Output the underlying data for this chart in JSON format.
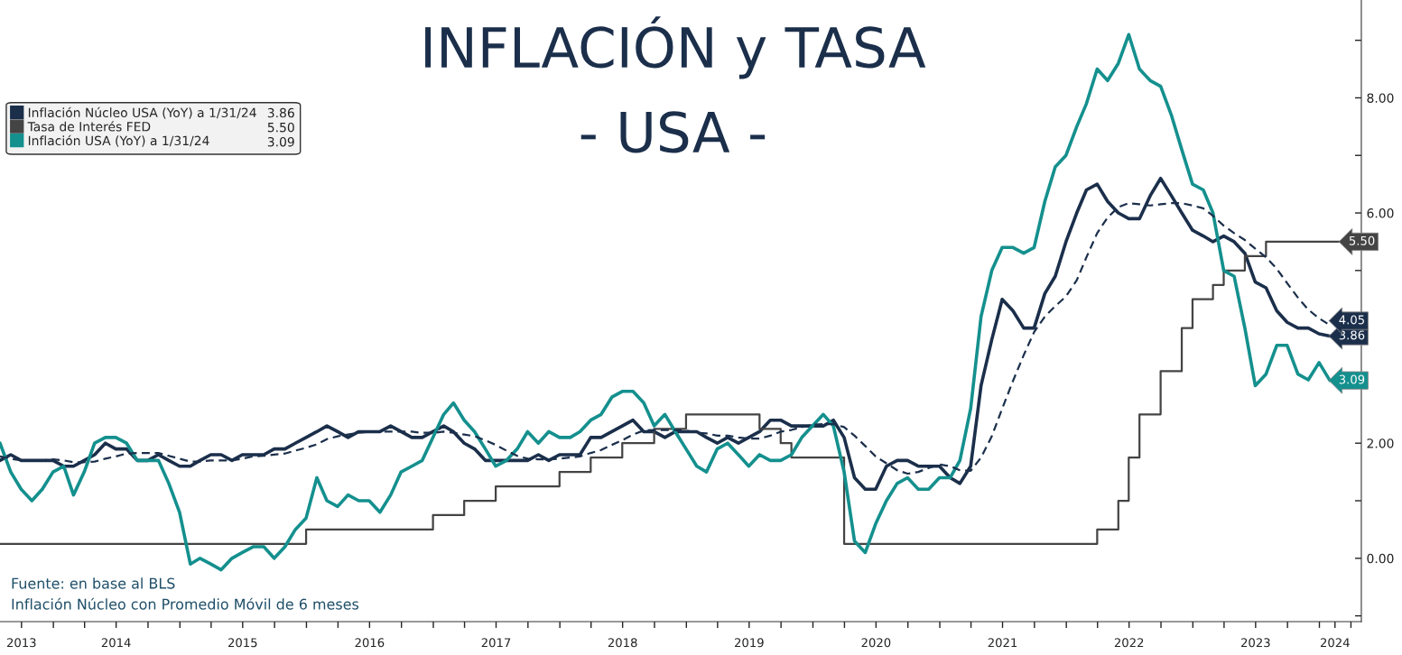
{
  "chart_data": {
    "type": "line",
    "title": "INFLACIÓN y TASA\n- USA -",
    "x": [
      "2013-07-31",
      "2013-08-31",
      "2013-09-30",
      "2013-10-31",
      "2013-11-30",
      "2013-12-31",
      "2014-01-31",
      "2014-02-28",
      "2014-03-31",
      "2014-04-30",
      "2014-05-31",
      "2014-06-30",
      "2014-07-31",
      "2014-08-31",
      "2014-09-30",
      "2014-10-31",
      "2014-11-30",
      "2014-12-31",
      "2015-01-31",
      "2015-02-28",
      "2015-03-31",
      "2015-04-30",
      "2015-05-31",
      "2015-06-30",
      "2015-07-31",
      "2015-08-31",
      "2015-09-30",
      "2015-10-31",
      "2015-11-30",
      "2015-12-31",
      "2016-01-31",
      "2016-02-29",
      "2016-03-31",
      "2016-04-30",
      "2016-05-31",
      "2016-06-30",
      "2016-07-31",
      "2016-08-31",
      "2016-09-30",
      "2016-10-31",
      "2016-11-30",
      "2016-12-31",
      "2017-01-31",
      "2017-02-28",
      "2017-03-31",
      "2017-04-30",
      "2017-05-31",
      "2017-06-30",
      "2017-07-31",
      "2017-08-31",
      "2017-09-30",
      "2017-10-31",
      "2017-11-30",
      "2017-12-31",
      "2018-01-31",
      "2018-02-28",
      "2018-03-31",
      "2018-04-30",
      "2018-05-31",
      "2018-06-30",
      "2018-07-31",
      "2018-08-31",
      "2018-09-30",
      "2018-10-31",
      "2018-11-30",
      "2018-12-31",
      "2019-01-31",
      "2019-02-28",
      "2019-03-31",
      "2019-04-30",
      "2019-05-31",
      "2019-06-30",
      "2019-07-31",
      "2019-08-31",
      "2019-09-30",
      "2019-10-31",
      "2019-11-30",
      "2019-12-31",
      "2020-01-31",
      "2020-02-29",
      "2020-03-31",
      "2020-04-30",
      "2020-05-31",
      "2020-06-30",
      "2020-07-31",
      "2020-08-31",
      "2020-09-30",
      "2020-10-31",
      "2020-11-30",
      "2020-12-31",
      "2021-01-31",
      "2021-02-28",
      "2021-03-31",
      "2021-04-30",
      "2021-05-31",
      "2021-06-30",
      "2021-07-31",
      "2021-08-31",
      "2021-09-30",
      "2021-10-31",
      "2021-11-30",
      "2021-12-31",
      "2022-01-31",
      "2022-02-28",
      "2022-03-31",
      "2022-04-30",
      "2022-05-31",
      "2022-06-30",
      "2022-07-31",
      "2022-08-31",
      "2022-09-30",
      "2022-10-31",
      "2022-11-30",
      "2022-12-31",
      "2023-01-31",
      "2023-02-28",
      "2023-03-31",
      "2023-04-30",
      "2023-05-31",
      "2023-06-30",
      "2023-07-31",
      "2023-08-31",
      "2023-09-30",
      "2023-10-31",
      "2023-11-30",
      "2023-12-31",
      "2024-01-31"
    ],
    "series": [
      {
        "name": "Inflación Núcleo USA (YoY) a 1/31/24",
        "type": "line",
        "color": "#1b2f4b",
        "line_style": "solid",
        "values": [
          1.7,
          1.8,
          1.7,
          1.7,
          1.7,
          1.7,
          1.6,
          1.6,
          1.7,
          1.8,
          2.0,
          1.9,
          1.9,
          1.7,
          1.7,
          1.8,
          1.7,
          1.6,
          1.6,
          1.7,
          1.8,
          1.8,
          1.7,
          1.8,
          1.8,
          1.8,
          1.9,
          1.9,
          2.0,
          2.1,
          2.2,
          2.3,
          2.2,
          2.1,
          2.2,
          2.2,
          2.2,
          2.3,
          2.2,
          2.1,
          2.1,
          2.2,
          2.3,
          2.2,
          2.0,
          1.9,
          1.7,
          1.7,
          1.7,
          1.7,
          1.7,
          1.8,
          1.7,
          1.8,
          1.8,
          1.8,
          2.1,
          2.1,
          2.2,
          2.3,
          2.4,
          2.2,
          2.2,
          2.1,
          2.2,
          2.2,
          2.2,
          2.1,
          2.0,
          2.1,
          2.0,
          2.1,
          2.2,
          2.4,
          2.4,
          2.3,
          2.3,
          2.3,
          2.3,
          2.4,
          2.1,
          1.4,
          1.2,
          1.2,
          1.6,
          1.7,
          1.7,
          1.6,
          1.6,
          1.6,
          1.4,
          1.3,
          1.6,
          3.0,
          3.8,
          4.5,
          4.3,
          4.0,
          4.0,
          4.6,
          4.9,
          5.5,
          6.0,
          6.4,
          6.5,
          6.2,
          6.0,
          5.9,
          5.9,
          6.3,
          6.6,
          6.3,
          6.0,
          5.7,
          5.6,
          5.5,
          5.6,
          5.5,
          5.3,
          4.8,
          4.7,
          4.3,
          4.1,
          4.0,
          4.0,
          3.9,
          3.86
        ],
        "value_labels": [
          null,
          null,
          null,
          null,
          null,
          null,
          null,
          null,
          null,
          null,
          null,
          null,
          null,
          null,
          null,
          null,
          null,
          null,
          null,
          null,
          null,
          null,
          null,
          null,
          null,
          null,
          null,
          null,
          null,
          null,
          null,
          null,
          null,
          null,
          null,
          null,
          null,
          null,
          null,
          null,
          null,
          null,
          null,
          null,
          null,
          null,
          null,
          null,
          null,
          null,
          null,
          null,
          null,
          null,
          null,
          null,
          null,
          null,
          null,
          null,
          null,
          null,
          null,
          null,
          null,
          null,
          null,
          null,
          null,
          null,
          null,
          null,
          null,
          null,
          null,
          null,
          null,
          null,
          null,
          null,
          null,
          null,
          null,
          null,
          null,
          null,
          null,
          null,
          null,
          null,
          null,
          null,
          null,
          null,
          null,
          null,
          null,
          null,
          null,
          null,
          null,
          null,
          null,
          null,
          null,
          null,
          null,
          null,
          null,
          null,
          null,
          null,
          null,
          null,
          null,
          null,
          null,
          null,
          null,
          null,
          null,
          null,
          null,
          null,
          null,
          null,
          "3.86"
        ]
      },
      {
        "name": "Tasa de Interés FED",
        "type": "step",
        "color": "#444444",
        "line_style": "solid",
        "x": [
          "2013-07-31",
          "2015-12-31",
          "2016-12-31",
          "2017-03-31",
          "2017-06-30",
          "2017-12-31",
          "2018-03-31",
          "2018-06-30",
          "2018-09-30",
          "2018-12-31",
          "2019-07-31",
          "2019-09-30",
          "2019-10-31",
          "2020-03-31",
          "2022-03-31",
          "2022-05-31",
          "2022-06-30",
          "2022-07-31",
          "2022-09-30",
          "2022-11-30",
          "2022-12-31",
          "2023-02-28",
          "2023-03-31",
          "2023-05-31",
          "2023-07-31",
          "2024-02-29"
        ],
        "values": [
          0.25,
          0.5,
          0.75,
          1.0,
          1.25,
          1.5,
          1.75,
          2.0,
          2.25,
          2.5,
          2.25,
          2.0,
          1.75,
          0.25,
          0.5,
          1.0,
          1.75,
          2.5,
          3.25,
          4.0,
          4.5,
          4.75,
          5.0,
          5.25,
          5.5,
          5.5
        ],
        "value_labels": [
          null,
          null,
          null,
          null,
          null,
          null,
          null,
          null,
          null,
          null,
          null,
          null,
          null,
          null,
          null,
          null,
          null,
          null,
          null,
          null,
          null,
          null,
          null,
          null,
          null,
          "5.50"
        ]
      },
      {
        "name": "Inflación USA (YoY) a 1/31/24",
        "type": "line",
        "color": "#14908e",
        "line_style": "solid",
        "values": [
          2.0,
          1.5,
          1.2,
          1.0,
          1.2,
          1.5,
          1.6,
          1.1,
          1.5,
          2.0,
          2.1,
          2.1,
          2.0,
          1.7,
          1.7,
          1.7,
          1.3,
          0.8,
          -0.1,
          0.0,
          -0.1,
          -0.2,
          0.0,
          0.1,
          0.2,
          0.2,
          0.0,
          0.2,
          0.5,
          0.7,
          1.4,
          1.0,
          0.9,
          1.1,
          1.0,
          1.0,
          0.8,
          1.1,
          1.5,
          1.6,
          1.7,
          2.1,
          2.5,
          2.7,
          2.4,
          2.2,
          1.9,
          1.6,
          1.7,
          1.9,
          2.2,
          2.0,
          2.2,
          2.1,
          2.1,
          2.2,
          2.4,
          2.5,
          2.8,
          2.9,
          2.9,
          2.7,
          2.3,
          2.5,
          2.2,
          1.9,
          1.6,
          1.5,
          1.9,
          2.0,
          1.8,
          1.6,
          1.8,
          1.7,
          1.7,
          1.8,
          2.1,
          2.3,
          2.5,
          2.3,
          1.5,
          0.3,
          0.1,
          0.6,
          1.0,
          1.3,
          1.4,
          1.2,
          1.2,
          1.4,
          1.4,
          1.7,
          2.6,
          4.2,
          5.0,
          5.4,
          5.4,
          5.3,
          5.4,
          6.2,
          6.8,
          7.0,
          7.5,
          7.9,
          8.5,
          8.3,
          8.6,
          9.1,
          8.5,
          8.3,
          8.2,
          7.7,
          7.1,
          6.5,
          6.4,
          6.0,
          5.0,
          4.9,
          4.0,
          3.0,
          3.2,
          3.7,
          3.7,
          3.2,
          3.1,
          3.4,
          3.09
        ],
        "value_labels": [
          null,
          null,
          null,
          null,
          null,
          null,
          null,
          null,
          null,
          null,
          null,
          null,
          null,
          null,
          null,
          null,
          null,
          null,
          null,
          null,
          null,
          null,
          null,
          null,
          null,
          null,
          null,
          null,
          null,
          null,
          null,
          null,
          null,
          null,
          null,
          null,
          null,
          null,
          null,
          null,
          null,
          null,
          null,
          null,
          null,
          null,
          null,
          null,
          null,
          null,
          null,
          null,
          null,
          null,
          null,
          null,
          null,
          null,
          null,
          null,
          null,
          null,
          null,
          null,
          null,
          null,
          null,
          null,
          null,
          null,
          null,
          null,
          null,
          null,
          null,
          null,
          null,
          null,
          null,
          null,
          null,
          null,
          null,
          null,
          null,
          null,
          null,
          null,
          null,
          null,
          null,
          null,
          null,
          null,
          null,
          null,
          null,
          null,
          null,
          null,
          null,
          null,
          null,
          null,
          null,
          null,
          null,
          null,
          null,
          null,
          null,
          null,
          null,
          null,
          null,
          null,
          null,
          null,
          null,
          null,
          null,
          null,
          null,
          null,
          null,
          null,
          "3.09"
        ]
      },
      {
        "type": "line",
        "color": "#1b2f4b",
        "line_style": "dashed",
        "values": [
          1.77,
          1.73,
          1.7,
          1.7,
          1.7,
          1.72,
          1.7,
          1.67,
          1.67,
          1.68,
          1.73,
          1.77,
          1.82,
          1.83,
          1.83,
          1.83,
          1.78,
          1.73,
          1.68,
          1.68,
          1.7,
          1.7,
          1.7,
          1.73,
          1.77,
          1.78,
          1.8,
          1.82,
          1.87,
          1.92,
          1.98,
          2.07,
          2.12,
          2.15,
          2.18,
          2.2,
          2.2,
          2.2,
          2.2,
          2.2,
          2.18,
          2.18,
          2.2,
          2.18,
          2.15,
          2.12,
          2.05,
          1.97,
          1.87,
          1.78,
          1.73,
          1.72,
          1.72,
          1.73,
          1.75,
          1.77,
          1.83,
          1.88,
          1.97,
          2.05,
          2.15,
          2.22,
          2.23,
          2.23,
          2.23,
          2.22,
          2.18,
          2.17,
          2.13,
          2.13,
          2.1,
          2.08,
          2.08,
          2.13,
          2.2,
          2.23,
          2.28,
          2.32,
          2.33,
          2.33,
          2.28,
          2.13,
          1.95,
          1.77,
          1.65,
          1.53,
          1.47,
          1.5,
          1.57,
          1.63,
          1.6,
          1.53,
          1.52,
          1.75,
          2.12,
          2.6,
          3.08,
          3.53,
          3.93,
          4.2,
          4.38,
          4.55,
          4.83,
          5.23,
          5.65,
          5.92,
          6.1,
          6.17,
          6.15,
          6.13,
          6.15,
          6.17,
          6.17,
          6.13,
          6.08,
          5.95,
          5.78,
          5.65,
          5.53,
          5.38,
          5.23,
          5.03,
          4.78,
          4.53,
          4.32,
          4.17,
          4.05
        ],
        "value_labels": [
          null,
          null,
          null,
          null,
          null,
          null,
          null,
          null,
          null,
          null,
          null,
          null,
          null,
          null,
          null,
          null,
          null,
          null,
          null,
          null,
          null,
          null,
          null,
          null,
          null,
          null,
          null,
          null,
          null,
          null,
          null,
          null,
          null,
          null,
          null,
          null,
          null,
          null,
          null,
          null,
          null,
          null,
          null,
          null,
          null,
          null,
          null,
          null,
          null,
          null,
          null,
          null,
          null,
          null,
          null,
          null,
          null,
          null,
          null,
          null,
          null,
          null,
          null,
          null,
          null,
          null,
          null,
          null,
          null,
          null,
          null,
          null,
          null,
          null,
          null,
          null,
          null,
          null,
          null,
          null,
          null,
          null,
          null,
          null,
          null,
          null,
          null,
          null,
          null,
          null,
          null,
          null,
          null,
          null,
          null,
          null,
          null,
          null,
          null,
          null,
          null,
          null,
          null,
          null,
          null,
          null,
          null,
          null,
          null,
          null,
          null,
          null,
          null,
          null,
          null,
          null,
          null,
          null,
          null,
          null,
          null,
          null,
          null,
          null,
          null,
          null,
          "4.05"
        ]
      }
    ],
    "xlim": [
      "2013-07-31",
      "2024-05-01"
    ],
    "xticks": [
      {
        "value": "2013-10-01",
        "label": "2013"
      },
      {
        "value": "2014-01-01",
        "label": null
      },
      {
        "value": "2014-04-01",
        "label": null
      },
      {
        "value": "2014-07-01",
        "label": "2014"
      },
      {
        "value": "2014-10-01",
        "label": null
      },
      {
        "value": "2015-01-01",
        "label": null
      },
      {
        "value": "2015-04-01",
        "label": null
      },
      {
        "value": "2015-07-01",
        "label": "2015"
      },
      {
        "value": "2015-10-01",
        "label": null
      },
      {
        "value": "2016-01-01",
        "label": null
      },
      {
        "value": "2016-04-01",
        "label": null
      },
      {
        "value": "2016-07-01",
        "label": "2016"
      },
      {
        "value": "2016-10-01",
        "label": null
      },
      {
        "value": "2017-01-01",
        "label": null
      },
      {
        "value": "2017-04-01",
        "label": null
      },
      {
        "value": "2017-07-01",
        "label": "2017"
      },
      {
        "value": "2017-10-01",
        "label": null
      },
      {
        "value": "2018-01-01",
        "label": null
      },
      {
        "value": "2018-04-01",
        "label": null
      },
      {
        "value": "2018-07-01",
        "label": "2018"
      },
      {
        "value": "2018-10-01",
        "label": null
      },
      {
        "value": "2019-01-01",
        "label": null
      },
      {
        "value": "2019-04-01",
        "label": null
      },
      {
        "value": "2019-07-01",
        "label": "2019"
      },
      {
        "value": "2019-10-01",
        "label": null
      },
      {
        "value": "2020-01-01",
        "label": null
      },
      {
        "value": "2020-04-01",
        "label": null
      },
      {
        "value": "2020-07-01",
        "label": "2020"
      },
      {
        "value": "2020-10-01",
        "label": null
      },
      {
        "value": "2021-01-01",
        "label": null
      },
      {
        "value": "2021-04-01",
        "label": null
      },
      {
        "value": "2021-07-01",
        "label": "2021"
      },
      {
        "value": "2021-10-01",
        "label": null
      },
      {
        "value": "2022-01-01",
        "label": null
      },
      {
        "value": "2022-04-01",
        "label": null
      },
      {
        "value": "2022-07-01",
        "label": "2022"
      },
      {
        "value": "2022-10-01",
        "label": null
      },
      {
        "value": "2023-01-01",
        "label": null
      },
      {
        "value": "2023-04-01",
        "label": null
      },
      {
        "value": "2023-07-01",
        "label": "2023"
      },
      {
        "value": "2023-10-01",
        "label": null
      },
      {
        "value": "2024-01-01",
        "label": null
      },
      {
        "value": "2024-02-15",
        "label": "2024"
      },
      {
        "value": "2024-04-01",
        "label": null
      }
    ],
    "ylim": [
      -1.1,
      9.7
    ],
    "yticks": [
      {
        "value": -1,
        "label": null
      },
      {
        "value": 0,
        "label": "0.00"
      },
      {
        "value": 1,
        "label": null
      },
      {
        "value": 2,
        "label": "2.00"
      },
      {
        "value": 3,
        "label": null
      },
      {
        "value": 4,
        "label": null
      },
      {
        "value": 5,
        "label": null
      },
      {
        "value": 6,
        "label": "6.00"
      },
      {
        "value": 7,
        "label": null
      },
      {
        "value": 8,
        "label": "8.00"
      },
      {
        "value": 9,
        "label": null
      }
    ],
    "annotations": [
      "Fuente: en base al BLS",
      "Inflación Núcleo con Promedio Móvil de 6 meses"
    ],
    "legend": "top left",
    "grid": false
  }
}
